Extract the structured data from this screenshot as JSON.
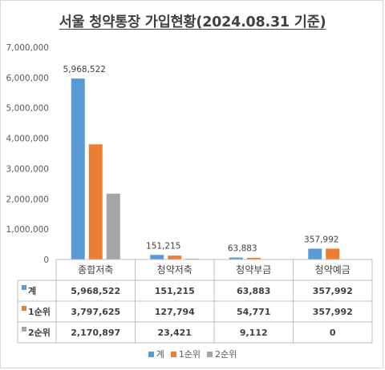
{
  "chart_data": {
    "type": "bar",
    "title": "서울 청약통장 가입현황(2024.08.31 기준)",
    "categories": [
      "종합저축",
      "청약저축",
      "청약부금",
      "청약예금"
    ],
    "series": [
      {
        "name": "계",
        "color": "#5b9bd5",
        "values": [
          5968522,
          151215,
          63883,
          357992
        ]
      },
      {
        "name": "1순위",
        "color": "#ed7d31",
        "values": [
          3797625,
          127794,
          54771,
          357992
        ]
      },
      {
        "name": "2순위",
        "color": "#a5a5a5",
        "values": [
          2170897,
          23421,
          9112,
          0
        ]
      }
    ],
    "data_labels_series": "계",
    "data_labels": [
      "5,968,522",
      "151,215",
      "63,883",
      "357,992"
    ],
    "ylim": [
      0,
      7000000
    ],
    "yticks": [
      "0",
      "1,000,000",
      "2,000,000",
      "3,000,000",
      "4,000,000",
      "5,000,000",
      "6,000,000",
      "7,000,000"
    ],
    "grid": false,
    "legend_position": "bottom",
    "data_table": {
      "rows": [
        {
          "name": "계",
          "cells": [
            "5,968,522",
            "151,215",
            "63,883",
            "357,992"
          ]
        },
        {
          "name": "1순위",
          "cells": [
            "3,797,625",
            "127,794",
            "54,771",
            "357,992"
          ]
        },
        {
          "name": "2순위",
          "cells": [
            "2,170,897",
            "23,421",
            "9,112",
            "0"
          ]
        }
      ]
    }
  }
}
